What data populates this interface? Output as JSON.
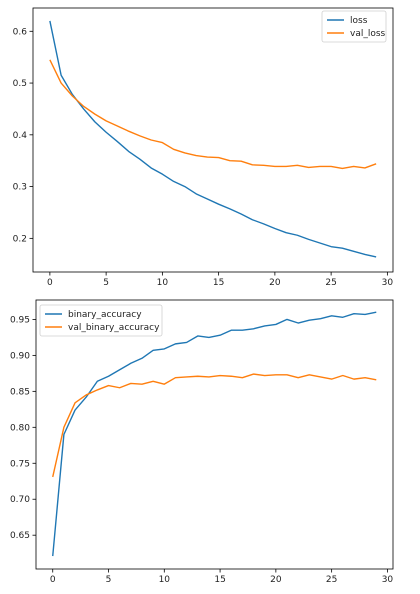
{
  "chart_data": [
    {
      "type": "line",
      "title": "",
      "xlabel": "",
      "ylabel": "",
      "xlim": [
        -1.5,
        30.5
      ],
      "ylim": [
        0.135,
        0.645
      ],
      "xticks": [
        0,
        5,
        10,
        15,
        20,
        25,
        30
      ],
      "xtick_labels": [
        "0",
        "5",
        "10",
        "15",
        "20",
        "25",
        "30"
      ],
      "yticks": [
        0.2,
        0.3,
        0.4,
        0.5,
        0.6
      ],
      "ytick_labels": [
        "0.2",
        "0.3",
        "0.4",
        "0.5",
        "0.6"
      ],
      "grid": false,
      "legend_position": "top-right",
      "x": [
        0,
        1,
        2,
        3,
        4,
        5,
        6,
        7,
        8,
        9,
        10,
        11,
        12,
        13,
        14,
        15,
        16,
        17,
        18,
        19,
        20,
        21,
        22,
        23,
        24,
        25,
        26,
        27,
        28,
        29
      ],
      "series": [
        {
          "name": "loss",
          "color": "#1f77b4",
          "values": [
            0.62,
            0.515,
            0.478,
            0.45,
            0.425,
            0.405,
            0.387,
            0.368,
            0.353,
            0.336,
            0.324,
            0.31,
            0.3,
            0.286,
            0.276,
            0.266,
            0.257,
            0.247,
            0.236,
            0.228,
            0.219,
            0.211,
            0.206,
            0.198,
            0.191,
            0.184,
            0.181,
            0.175,
            0.169,
            0.164
          ]
        },
        {
          "name": "val_loss",
          "color": "#ff7f0e",
          "values": [
            0.545,
            0.5,
            0.475,
            0.455,
            0.44,
            0.427,
            0.417,
            0.407,
            0.398,
            0.39,
            0.385,
            0.372,
            0.365,
            0.36,
            0.357,
            0.356,
            0.35,
            0.349,
            0.342,
            0.341,
            0.339,
            0.339,
            0.341,
            0.337,
            0.339,
            0.339,
            0.335,
            0.339,
            0.336,
            0.344
          ]
        }
      ]
    },
    {
      "type": "line",
      "title": "",
      "xlabel": "",
      "ylabel": "",
      "xlim": [
        -1.5,
        30.5
      ],
      "ylim": [
        0.603,
        0.977
      ],
      "xticks": [
        0,
        5,
        10,
        15,
        20,
        25,
        30
      ],
      "xtick_labels": [
        "0",
        "5",
        "10",
        "15",
        "20",
        "25",
        "30"
      ],
      "yticks": [
        0.65,
        0.7,
        0.75,
        0.8,
        0.85,
        0.9,
        0.95
      ],
      "ytick_labels": [
        "0.65",
        "0.70",
        "0.75",
        "0.80",
        "0.85",
        "0.90",
        "0.95"
      ],
      "grid": false,
      "legend_position": "top-left",
      "x": [
        0,
        1,
        2,
        3,
        4,
        5,
        6,
        7,
        8,
        9,
        10,
        11,
        12,
        13,
        14,
        15,
        16,
        17,
        18,
        19,
        20,
        21,
        22,
        23,
        24,
        25,
        26,
        27,
        28,
        29
      ],
      "series": [
        {
          "name": "binary_accuracy",
          "color": "#1f77b4",
          "values": [
            0.621,
            0.79,
            0.824,
            0.842,
            0.864,
            0.871,
            0.88,
            0.889,
            0.896,
            0.907,
            0.909,
            0.916,
            0.918,
            0.927,
            0.925,
            0.928,
            0.935,
            0.935,
            0.937,
            0.941,
            0.943,
            0.95,
            0.945,
            0.949,
            0.951,
            0.955,
            0.953,
            0.958,
            0.957,
            0.96
          ]
        },
        {
          "name": "val_binary_accuracy",
          "color": "#ff7f0e",
          "values": [
            0.731,
            0.8,
            0.834,
            0.845,
            0.852,
            0.858,
            0.855,
            0.861,
            0.86,
            0.864,
            0.86,
            0.869,
            0.87,
            0.871,
            0.87,
            0.872,
            0.871,
            0.869,
            0.874,
            0.872,
            0.873,
            0.873,
            0.869,
            0.873,
            0.87,
            0.867,
            0.872,
            0.867,
            0.869,
            0.866
          ]
        }
      ]
    }
  ]
}
